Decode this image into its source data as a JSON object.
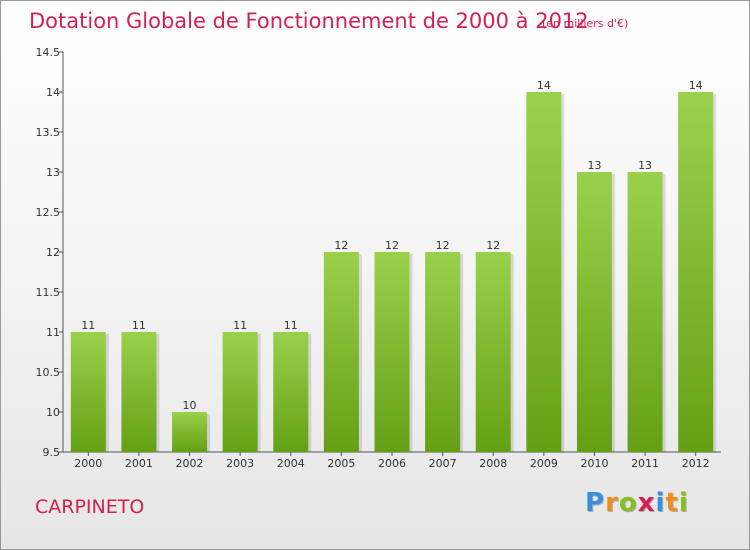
{
  "header": {
    "title": "Dotation Globale de Fonctionnement de 2000 à 2012",
    "unit": "(en milliers d'€)"
  },
  "footer": {
    "commune": "CARPINETO",
    "brand": [
      "P",
      "r",
      "o",
      "x",
      "i",
      "t",
      "i"
    ],
    "brand_colors": [
      "#3a8fd8",
      "#f28c1c",
      "#84c11f",
      "#d61f50",
      "#3a8fd8",
      "#f28c1c",
      "#84c11f"
    ]
  },
  "colors": {
    "accent": "#d61f50",
    "bar_top": "#9ad14c",
    "bar_bottom": "#64a014"
  },
  "chart_data": {
    "type": "bar",
    "title": "Dotation Globale de Fonctionnement de 2000 à 2012",
    "xlabel": "",
    "ylabel": "",
    "categories": [
      "2000",
      "2001",
      "2002",
      "2003",
      "2004",
      "2005",
      "2006",
      "2007",
      "2008",
      "2009",
      "2010",
      "2011",
      "2012"
    ],
    "values": [
      11,
      11,
      10,
      11,
      11,
      12,
      12,
      12,
      12,
      14,
      13,
      13,
      14
    ],
    "data_labels": [
      "11",
      "11",
      "10",
      "11",
      "11",
      "12",
      "12",
      "12",
      "12",
      "14",
      "13",
      "13",
      "14"
    ],
    "ylim": [
      9.5,
      14.5
    ],
    "yticks": [
      9.5,
      10,
      10.5,
      11,
      11.5,
      12,
      12.5,
      13,
      13.5,
      14,
      14.5
    ],
    "ytick_labels": [
      "9.5",
      "10",
      "10.5",
      "11",
      "11.5",
      "12",
      "12.5",
      "13",
      "13.5",
      "14",
      "14.5"
    ],
    "grid": false,
    "legend": "none"
  }
}
